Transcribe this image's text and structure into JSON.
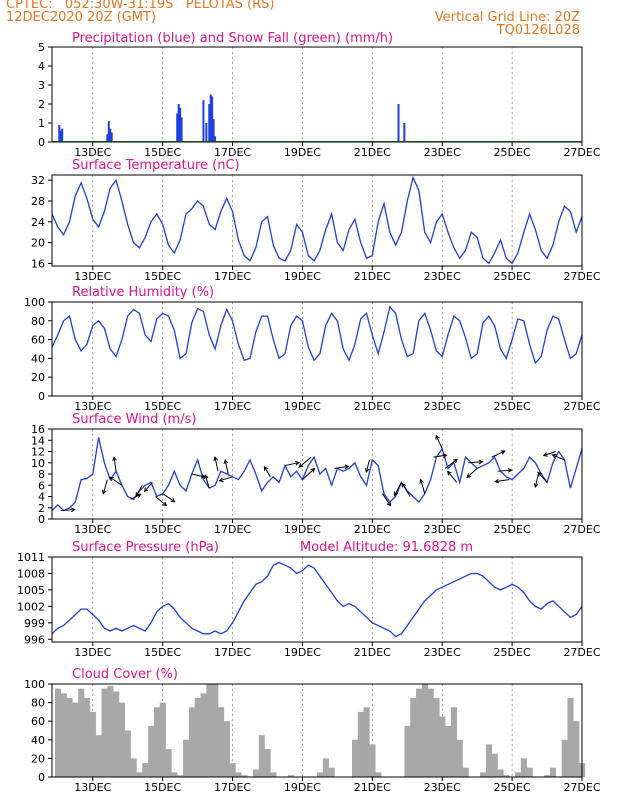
{
  "header": {
    "line1_left": "CPTEC:   052:30W-31:19S   PELOTAS (RS)",
    "line2_left": "12DEC2020 20Z (GMT)",
    "line2_right": "Vertical Grid Line: 20Z",
    "line3_right": "TQ0126L028"
  },
  "colors": {
    "header_text": "#e8761f",
    "title_text": "#e0138c",
    "line": "#1f3fe0",
    "precip": "#1f3fe0",
    "snow": "#22a022",
    "cloud": "#a8a8a8",
    "grid": "#666666"
  },
  "x_axis": {
    "tick_labels": [
      "13DEC",
      "15DEC",
      "17DEC",
      "19DEC",
      "21DEC",
      "23DEC",
      "25DEC",
      "27DEC"
    ],
    "tick_hours": [
      28,
      76,
      124,
      172,
      220,
      268,
      316,
      364
    ],
    "start_hour": 0,
    "end_hour": 364
  },
  "chart_data": [
    {
      "type": "bar",
      "title": "Precipitation (blue) and Snow Fall (green) (mm/h)",
      "ylim": [
        0,
        5
      ],
      "yticks": [
        0,
        1,
        2,
        3,
        4,
        5
      ],
      "series": [
        {
          "name": "Precipitation",
          "x": [
            5,
            6,
            7,
            38,
            39,
            40,
            41,
            86,
            87,
            88,
            89,
            104,
            106,
            108,
            109,
            110,
            111,
            112,
            238,
            242
          ],
          "values": [
            0.9,
            0.6,
            0.7,
            0.4,
            1.1,
            0.7,
            0.5,
            1.5,
            2.0,
            1.8,
            1.3,
            2.2,
            1.0,
            2.0,
            2.5,
            2.4,
            1.2,
            0.3,
            2.0,
            1.0
          ]
        },
        {
          "name": "Snow Fall",
          "x": [],
          "values": []
        }
      ]
    },
    {
      "type": "line",
      "title": "Surface Temperature (nC)",
      "ylim": [
        15.5,
        33
      ],
      "yticks": [
        16,
        20,
        24,
        28,
        32
      ],
      "x": [
        0,
        4,
        8,
        12,
        16,
        20,
        24,
        28,
        32,
        36,
        40,
        44,
        48,
        52,
        56,
        60,
        64,
        68,
        72,
        76,
        80,
        84,
        88,
        92,
        96,
        100,
        104,
        108,
        112,
        116,
        120,
        124,
        128,
        132,
        136,
        140,
        144,
        148,
        152,
        156,
        160,
        164,
        168,
        172,
        176,
        180,
        184,
        188,
        192,
        196,
        200,
        204,
        208,
        212,
        216,
        220,
        224,
        228,
        232,
        236,
        240,
        244,
        248,
        252,
        256,
        260,
        264,
        268,
        272,
        276,
        280,
        284,
        288,
        292,
        296,
        300,
        304,
        308,
        312,
        316,
        320,
        324,
        328,
        332,
        336,
        340,
        344,
        348,
        352,
        356,
        360,
        364
      ],
      "values": [
        25.5,
        23,
        21.5,
        24,
        29,
        31.5,
        28.5,
        24.5,
        23,
        26,
        30.5,
        32,
        28,
        23.5,
        20,
        19,
        21,
        24,
        25.5,
        23.5,
        19.5,
        18,
        20.5,
        25.5,
        26.5,
        28,
        27,
        23.5,
        22.5,
        26,
        28.5,
        26,
        20.5,
        17.5,
        16.5,
        19,
        24,
        25,
        19.5,
        17,
        16.5,
        18.5,
        23.5,
        22,
        17.5,
        16.5,
        18.5,
        22.5,
        25.5,
        20,
        18.5,
        22.5,
        24.5,
        20,
        17,
        17.5,
        24,
        27.5,
        22,
        19.5,
        22,
        28,
        32.5,
        30,
        22,
        20,
        24,
        25.5,
        22,
        19,
        17,
        18.5,
        22,
        21,
        17,
        16,
        18,
        20.5,
        17,
        16,
        18,
        22,
        25.5,
        22.5,
        18.5,
        17,
        19.5,
        24,
        27,
        26,
        22,
        25
      ]
    },
    {
      "type": "line",
      "title": "Relative Humidity (%)",
      "ylim": [
        0,
        100
      ],
      "yticks": [
        0,
        20,
        40,
        60,
        80,
        100
      ],
      "x": [
        0,
        4,
        8,
        12,
        16,
        20,
        24,
        28,
        32,
        36,
        40,
        44,
        48,
        52,
        56,
        60,
        64,
        68,
        72,
        76,
        80,
        84,
        88,
        92,
        96,
        100,
        104,
        108,
        112,
        116,
        120,
        124,
        128,
        132,
        136,
        140,
        144,
        148,
        152,
        156,
        160,
        164,
        168,
        172,
        176,
        180,
        184,
        188,
        192,
        196,
        200,
        204,
        208,
        212,
        216,
        220,
        224,
        228,
        232,
        236,
        240,
        244,
        248,
        252,
        256,
        260,
        264,
        268,
        272,
        276,
        280,
        284,
        288,
        292,
        296,
        300,
        304,
        308,
        312,
        316,
        320,
        324,
        328,
        332,
        336,
        340,
        344,
        348,
        352,
        356,
        360,
        364
      ],
      "values": [
        52,
        65,
        80,
        85,
        60,
        48,
        55,
        75,
        80,
        72,
        50,
        42,
        60,
        85,
        92,
        88,
        65,
        58,
        82,
        88,
        85,
        70,
        40,
        45,
        78,
        93,
        90,
        65,
        50,
        75,
        92,
        80,
        55,
        38,
        40,
        68,
        85,
        85,
        60,
        40,
        45,
        75,
        85,
        80,
        52,
        38,
        45,
        75,
        88,
        80,
        50,
        38,
        55,
        82,
        88,
        65,
        45,
        68,
        95,
        88,
        60,
        42,
        45,
        80,
        88,
        70,
        48,
        42,
        65,
        85,
        80,
        62,
        40,
        45,
        78,
        85,
        75,
        50,
        40,
        60,
        82,
        80,
        55,
        35,
        42,
        70,
        85,
        82,
        60,
        40,
        45,
        65
      ]
    },
    {
      "type": "line",
      "title": "Surface Wind (m/s)",
      "ylim": [
        0,
        16
      ],
      "yticks": [
        0,
        2,
        4,
        6,
        8,
        10,
        12,
        14,
        16
      ],
      "x": [
        0,
        4,
        8,
        12,
        16,
        20,
        24,
        28,
        32,
        36,
        40,
        44,
        48,
        52,
        56,
        60,
        64,
        68,
        72,
        76,
        80,
        84,
        88,
        92,
        96,
        100,
        104,
        108,
        112,
        116,
        120,
        124,
        128,
        132,
        136,
        140,
        144,
        148,
        152,
        156,
        160,
        164,
        168,
        172,
        176,
        180,
        184,
        188,
        192,
        196,
        200,
        204,
        208,
        212,
        216,
        220,
        224,
        228,
        232,
        236,
        240,
        244,
        248,
        252,
        256,
        260,
        264,
        268,
        272,
        276,
        280,
        284,
        288,
        292,
        296,
        300,
        304,
        308,
        312,
        316,
        320,
        324,
        328,
        332,
        336,
        340,
        344,
        348,
        352,
        356,
        360,
        364
      ],
      "values": [
        1.5,
        2.5,
        1.5,
        2,
        3,
        7,
        7.2,
        8,
        14.5,
        10,
        7,
        8.5,
        6,
        4,
        3.5,
        5,
        6,
        6.5,
        4,
        4.5,
        6,
        8.5,
        6,
        5,
        8,
        10.5,
        7,
        5.5,
        6,
        8.5,
        8,
        7.5,
        7,
        8.5,
        10.5,
        8,
        5,
        6.5,
        7.5,
        6.5,
        9.5,
        7.5,
        8.5,
        7,
        9.5,
        11,
        8,
        9,
        6,
        9,
        8.5,
        9,
        10,
        7.5,
        6,
        10.5,
        9.5,
        4.5,
        3,
        4,
        6.5,
        5,
        4,
        3,
        4.5,
        7,
        11,
        12.5,
        9,
        10,
        6.5,
        11,
        10,
        9,
        9.5,
        10,
        11,
        8.5,
        7.5,
        7,
        8,
        9,
        11,
        10,
        8,
        6.5,
        10,
        12,
        10.5,
        5.5,
        9,
        12.5
      ],
      "arrows": [
        {
          "x": 6,
          "dx": 14,
          "dy": -1
        },
        {
          "x": 38,
          "dx": -4,
          "dy": 14
        },
        {
          "x": 44,
          "dx": -2,
          "dy": -14
        },
        {
          "x": 48,
          "dx": -12,
          "dy": -8
        },
        {
          "x": 54,
          "dx": 10,
          "dy": -5
        },
        {
          "x": 62,
          "dx": -6,
          "dy": 11
        },
        {
          "x": 69,
          "dx": -8,
          "dy": 9
        },
        {
          "x": 71,
          "dx": 11,
          "dy": 9
        },
        {
          "x": 76,
          "dx": 12,
          "dy": 8
        },
        {
          "x": 96,
          "dx": 13,
          "dy": 3
        },
        {
          "x": 108,
          "dx": -4,
          "dy": -13
        },
        {
          "x": 114,
          "dx": -3,
          "dy": -14
        },
        {
          "x": 121,
          "dx": -3,
          "dy": -14
        },
        {
          "x": 124,
          "dx": -13,
          "dy": 4
        },
        {
          "x": 150,
          "dx": -6,
          "dy": -10
        },
        {
          "x": 160,
          "dx": 14,
          "dy": -3
        },
        {
          "x": 172,
          "dx": 12,
          "dy": -11
        },
        {
          "x": 178,
          "dx": -12,
          "dy": 10
        },
        {
          "x": 194,
          "dx": 14,
          "dy": -2
        },
        {
          "x": 218,
          "dx": -3,
          "dy": 12
        },
        {
          "x": 227,
          "dx": 8,
          "dy": 12
        },
        {
          "x": 240,
          "dx": -7,
          "dy": 13
        },
        {
          "x": 246,
          "dx": -8,
          "dy": -13
        },
        {
          "x": 256,
          "dx": -4,
          "dy": -14
        },
        {
          "x": 262,
          "dx": 13,
          "dy": -2
        },
        {
          "x": 268,
          "dx": -6,
          "dy": -13
        },
        {
          "x": 270,
          "dx": 12,
          "dy": -9
        },
        {
          "x": 278,
          "dx": -9,
          "dy": -11
        },
        {
          "x": 286,
          "dx": 14,
          "dy": -1
        },
        {
          "x": 292,
          "dx": -10,
          "dy": 9
        },
        {
          "x": 302,
          "dx": 13,
          "dy": -6
        },
        {
          "x": 306,
          "dx": 14,
          "dy": -1
        },
        {
          "x": 314,
          "dx": -14,
          "dy": 2
        },
        {
          "x": 334,
          "dx": -3,
          "dy": 13
        },
        {
          "x": 340,
          "dx": -9,
          "dy": -10
        },
        {
          "x": 346,
          "dx": -12,
          "dy": 4
        },
        {
          "x": 352,
          "dx": -12,
          "dy": -5
        }
      ]
    },
    {
      "type": "line",
      "title": "Surface Pressure (hPa)",
      "annotation": "Model Altitude: 91.6828 m",
      "ylim": [
        995.5,
        1011
      ],
      "yticks": [
        996,
        999,
        1002,
        1005,
        1008,
        1011
      ],
      "x": [
        0,
        4,
        8,
        12,
        16,
        20,
        24,
        28,
        32,
        36,
        40,
        44,
        48,
        52,
        56,
        60,
        64,
        68,
        72,
        76,
        80,
        84,
        88,
        92,
        96,
        100,
        104,
        108,
        112,
        116,
        120,
        124,
        128,
        132,
        136,
        140,
        144,
        148,
        152,
        156,
        160,
        164,
        168,
        172,
        176,
        180,
        184,
        188,
        192,
        196,
        200,
        204,
        208,
        212,
        216,
        220,
        224,
        228,
        232,
        236,
        240,
        244,
        248,
        252,
        256,
        260,
        264,
        268,
        272,
        276,
        280,
        284,
        288,
        292,
        296,
        300,
        304,
        308,
        312,
        316,
        320,
        324,
        328,
        332,
        336,
        340,
        344,
        348,
        352,
        356,
        360,
        364
      ],
      "values": [
        997,
        998,
        998.5,
        999.5,
        1000.5,
        1001.5,
        1001.5,
        1000.5,
        999.5,
        998,
        997.5,
        998,
        997.5,
        998,
        998.5,
        998,
        997.5,
        999,
        1001,
        1002,
        1002.5,
        1001.5,
        1000,
        999,
        998,
        997.5,
        997,
        997,
        997.5,
        997,
        997.5,
        999,
        1001,
        1003,
        1004.5,
        1006,
        1006.5,
        1007.5,
        1009.5,
        1010,
        1009.5,
        1009,
        1008,
        1008.5,
        1009.5,
        1009,
        1007.5,
        1006,
        1004.5,
        1003,
        1002,
        1002.5,
        1002,
        1001,
        1000,
        999,
        998.5,
        998,
        997.5,
        996.5,
        997,
        998.5,
        1000,
        1001.5,
        1003,
        1004,
        1005,
        1005.5,
        1006,
        1006.5,
        1007,
        1007.5,
        1008,
        1008,
        1007.5,
        1006.5,
        1005.5,
        1005,
        1005.5,
        1006,
        1005.5,
        1004.5,
        1003,
        1002,
        1001.5,
        1002.5,
        1003,
        1002,
        1001,
        1000,
        1000.5,
        1002
      ]
    },
    {
      "type": "bar",
      "title": "Cloud Cover (%)",
      "ylim": [
        0,
        100
      ],
      "yticks": [
        0,
        20,
        40,
        60,
        80,
        100
      ],
      "x": [
        0,
        4,
        8,
        12,
        16,
        20,
        24,
        28,
        32,
        36,
        40,
        44,
        48,
        52,
        56,
        60,
        64,
        68,
        72,
        76,
        80,
        84,
        88,
        92,
        96,
        100,
        104,
        108,
        112,
        116,
        120,
        124,
        128,
        132,
        136,
        140,
        144,
        148,
        152,
        156,
        160,
        164,
        168,
        172,
        176,
        180,
        184,
        188,
        192,
        196,
        200,
        204,
        208,
        212,
        216,
        220,
        224,
        228,
        232,
        236,
        240,
        244,
        248,
        252,
        256,
        260,
        264,
        268,
        272,
        276,
        280,
        284,
        288,
        292,
        296,
        300,
        304,
        308,
        312,
        316,
        320,
        324,
        328,
        332,
        336,
        340,
        344,
        348,
        352,
        356,
        360,
        364
      ],
      "values": [
        0,
        95,
        90,
        85,
        80,
        95,
        85,
        70,
        45,
        95,
        98,
        92,
        80,
        50,
        20,
        5,
        15,
        55,
        75,
        80,
        30,
        5,
        2,
        40,
        75,
        85,
        90,
        100,
        100,
        75,
        60,
        15,
        5,
        2,
        0,
        8,
        45,
        30,
        5,
        0,
        0,
        2,
        0,
        0,
        0,
        0,
        5,
        20,
        10,
        0,
        0,
        0,
        40,
        70,
        75,
        35,
        5,
        0,
        0,
        0,
        0,
        55,
        85,
        95,
        100,
        95,
        85,
        65,
        55,
        75,
        40,
        10,
        0,
        0,
        5,
        35,
        25,
        8,
        2,
        0,
        5,
        20,
        10,
        0,
        0,
        2,
        10,
        0,
        40,
        85,
        60,
        15
      ]
    }
  ]
}
